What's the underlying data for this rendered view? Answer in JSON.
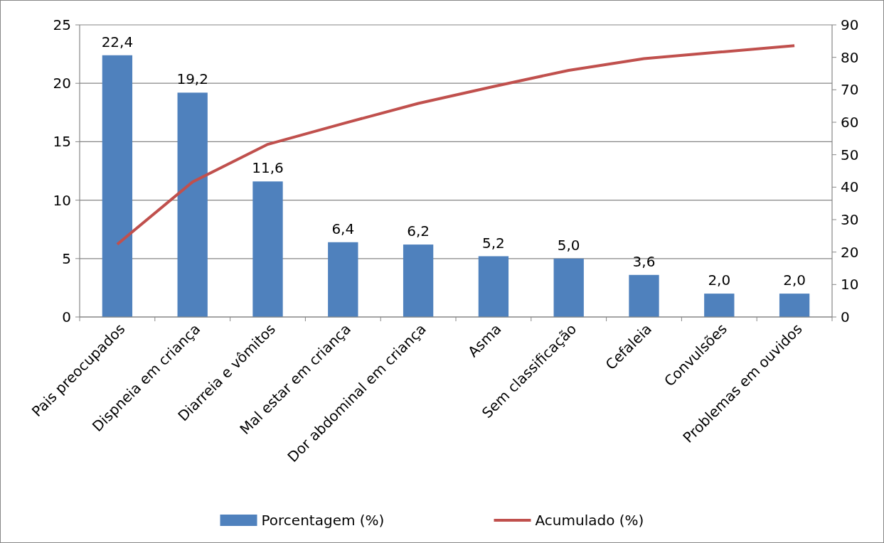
{
  "chart_data": {
    "type": "bar",
    "categories": [
      "Pais preocupados",
      "Dispneia em criança",
      "Diarreia e vômitos",
      "Mal estar em criança",
      "Dor abdominal em criança",
      "Asma",
      "Sem classificação",
      "Cefaleia",
      "Convulsões",
      "Problemas em ouvidos"
    ],
    "series": [
      {
        "name": "Porcentagem (%)",
        "color": "#4f81bd",
        "values": [
          22.4,
          19.2,
          11.6,
          6.4,
          6.2,
          5.2,
          5.0,
          3.6,
          2.0,
          2.0
        ],
        "value_labels": [
          "22,4",
          "19,2",
          "11,6",
          "6,4",
          "6,2",
          "5,2",
          "5,0",
          "3,6",
          "2,0",
          "2,0"
        ]
      },
      {
        "name": "Acumulado (%)",
        "type": "line",
        "axis": "y2",
        "color": "#c0504d",
        "values": [
          22.4,
          41.6,
          53.2,
          59.6,
          65.8,
          71.0,
          76.0,
          79.6,
          81.6,
          83.6
        ]
      }
    ],
    "ylim": [
      0,
      25
    ],
    "yticks": [
      0,
      5,
      10,
      15,
      20,
      25
    ],
    "y2lim": [
      0,
      90
    ],
    "y2ticks": [
      0,
      10,
      20,
      30,
      40,
      50,
      60,
      70,
      80,
      90
    ],
    "grid": "y",
    "legend": "bottom",
    "marker": "none"
  }
}
